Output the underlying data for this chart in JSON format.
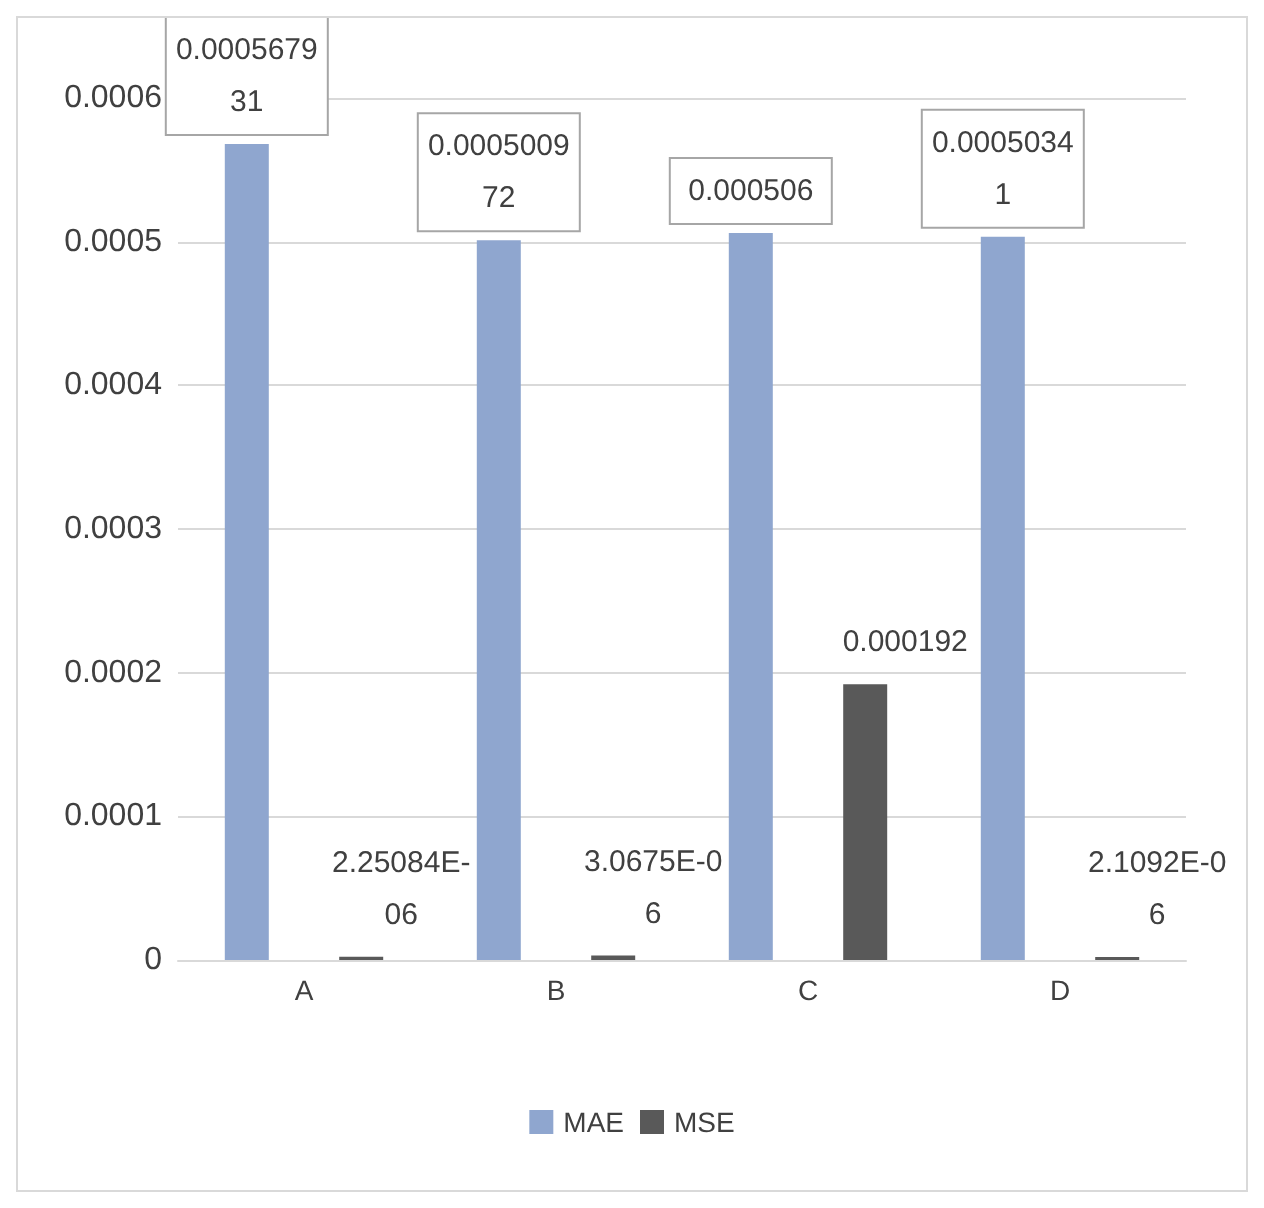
{
  "chart_data": {
    "type": "bar",
    "categories": [
      "A",
      "B",
      "C",
      "D"
    ],
    "series": [
      {
        "name": "MAE",
        "color": "#8fa6cf",
        "values": [
          0.000567931,
          0.000500972,
          0.000506,
          0.00050341
        ],
        "value_labels": [
          "0.000567931",
          "0.000500972",
          "0.000506",
          "0.00050341"
        ]
      },
      {
        "name": "MSE",
        "color": "#595959",
        "values": [
          2.25084e-06,
          3.0675e-06,
          0.000192,
          2.1092e-06
        ],
        "value_labels": [
          "2.25084E-06",
          "3.0675E-06",
          "0.000192",
          "2.1092E-06"
        ]
      }
    ],
    "ylim": [
      0,
      0.0006
    ],
    "yticks": [
      0,
      0.0001,
      0.0002,
      0.0003,
      0.0004,
      0.0005,
      0.0006
    ],
    "grid": "y",
    "legend": "bottom"
  }
}
